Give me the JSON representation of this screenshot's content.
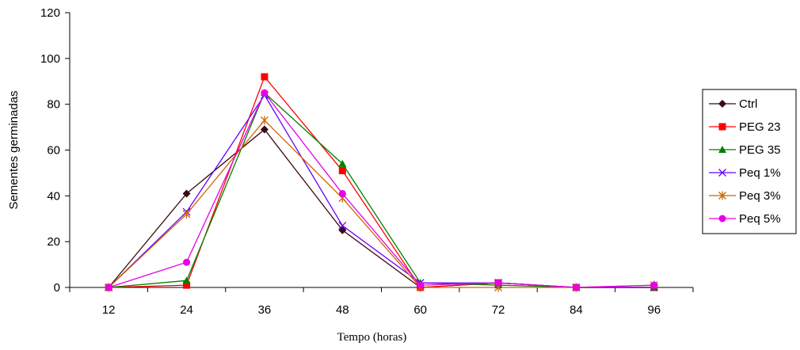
{
  "chart_data": {
    "type": "line",
    "title": "",
    "xlabel": "Tempo (horas)",
    "ylabel": "Sementes germinadas",
    "categories": [
      "12",
      "24",
      "36",
      "48",
      "60",
      "72",
      "84",
      "96"
    ],
    "ylim": [
      0,
      120
    ],
    "yticks": [
      "0",
      "20",
      "40",
      "60",
      "80",
      "100",
      "120"
    ],
    "grid": false,
    "legend_position": "right",
    "series": [
      {
        "name": "Ctrl",
        "color": "#3b0a12",
        "marker": "diamond",
        "values": [
          0,
          41,
          69,
          25,
          0,
          2,
          0,
          0
        ]
      },
      {
        "name": "PEG 23",
        "color": "#ff0000",
        "marker": "square",
        "values": [
          0,
          1,
          92,
          51,
          0,
          2,
          0,
          0
        ]
      },
      {
        "name": "PEG 35",
        "color": "#008000",
        "marker": "triangle",
        "values": [
          0,
          3,
          85,
          54,
          2,
          1,
          0,
          0
        ]
      },
      {
        "name": "Peq 1%",
        "color": "#6a00ff",
        "marker": "x",
        "values": [
          0,
          33,
          84,
          27,
          2,
          2,
          0,
          0
        ]
      },
      {
        "name": "Peq 3%",
        "color": "#cc6600",
        "marker": "star",
        "values": [
          0,
          32,
          73,
          39,
          0,
          0,
          0,
          1
        ]
      },
      {
        "name": "Peq 5%",
        "color": "#e600e6",
        "marker": "circle",
        "values": [
          0,
          11,
          85,
          41,
          1,
          2,
          0,
          1
        ]
      }
    ]
  }
}
